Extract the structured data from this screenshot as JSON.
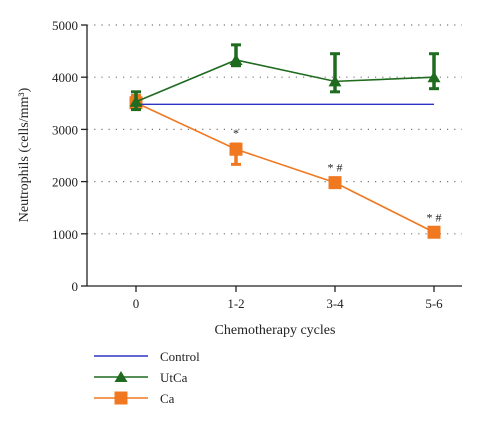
{
  "chart_data": {
    "type": "line",
    "xlabel": "Chemotherapy cycles",
    "ylabel": "Neutrophils (cells/mm³)",
    "categories": [
      "0",
      "1-2",
      "3-4",
      "5-6"
    ],
    "ylim": [
      0,
      5000
    ],
    "yticks": [
      "0",
      "1000",
      "2000",
      "3000",
      "4000",
      "5000"
    ],
    "grid": "dotted horizontal",
    "legend_position": "bottom-left",
    "series": [
      {
        "name": "Control",
        "color": "#2b35c4",
        "marker": "none",
        "values": [
          3480,
          3480,
          3480,
          3480
        ]
      },
      {
        "name": "UtCa",
        "color": "#1f6b1f",
        "marker": "triangle",
        "values": [
          3530,
          4330,
          3920,
          4000
        ],
        "error_low": [
          3380,
          4220,
          3720,
          3780
        ],
        "error_high": [
          3720,
          4620,
          4450,
          4450
        ]
      },
      {
        "name": "Ca",
        "color": "#f07820",
        "marker": "square",
        "values": [
          3510,
          2620,
          1980,
          1030
        ],
        "error_low": [
          3380,
          2330,
          1890,
          960
        ],
        "error_high": [
          3650,
          2720,
          2060,
          1100
        ],
        "annotations": [
          "",
          "*",
          "* #",
          "* #"
        ]
      }
    ]
  }
}
